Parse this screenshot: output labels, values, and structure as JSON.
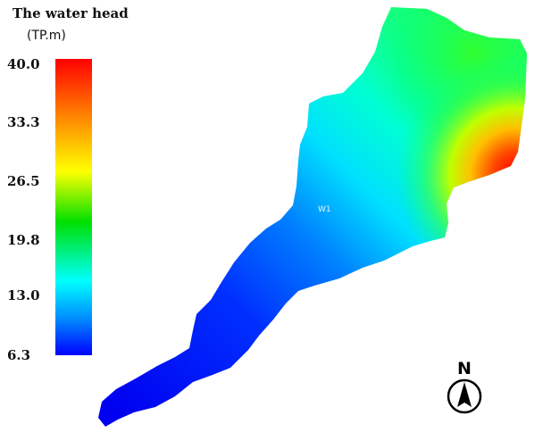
{
  "legend": {
    "title": "The water head",
    "units": "(TP.m)",
    "ticks": [
      "40.0",
      "33.3",
      "26.5",
      "19.8",
      "13.0",
      "6.3"
    ],
    "colors": [
      "#ff0000",
      "#ff7a00",
      "#ffff00",
      "#00e000",
      "#00ffff",
      "#0000ff"
    ]
  },
  "map": {
    "well_label": "W1",
    "north_label": "N",
    "north_icon": "north-arrow-icon"
  }
}
